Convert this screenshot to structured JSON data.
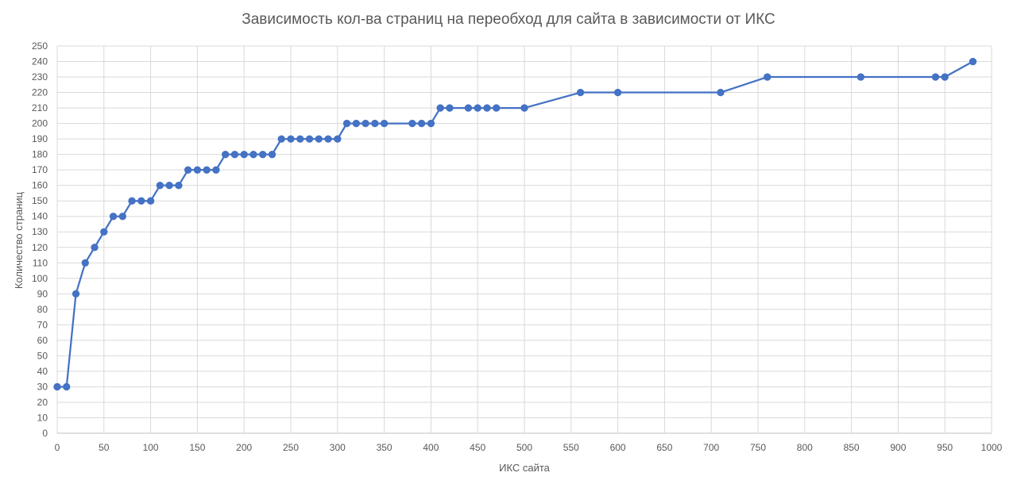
{
  "chart_data": {
    "type": "line",
    "title": "Зависимость кол-ва страниц на переобход для сайта в зависимости от ИКС",
    "xlabel": "ИКС сайта",
    "ylabel": "Количество страниц",
    "xlim": [
      0,
      1000
    ],
    "ylim": [
      0,
      250
    ],
    "x_ticks": [
      "0",
      "50",
      "100",
      "150",
      "200",
      "250",
      "300",
      "350",
      "400",
      "450",
      "500",
      "550",
      "600",
      "650",
      "700",
      "750",
      "800",
      "850",
      "900",
      "950",
      "1000"
    ],
    "y_ticks": [
      "0",
      "10",
      "20",
      "30",
      "40",
      "50",
      "60",
      "70",
      "80",
      "90",
      "100",
      "110",
      "120",
      "130",
      "140",
      "150",
      "160",
      "170",
      "180",
      "190",
      "200",
      "210",
      "220",
      "230",
      "240",
      "250"
    ],
    "grid": true,
    "legend": "none",
    "series": [
      {
        "color": "#4472C4",
        "points": [
          [
            0,
            30
          ],
          [
            10,
            30
          ],
          [
            20,
            90
          ],
          [
            30,
            110
          ],
          [
            40,
            120
          ],
          [
            50,
            130
          ],
          [
            60,
            140
          ],
          [
            70,
            140
          ],
          [
            80,
            150
          ],
          [
            90,
            150
          ],
          [
            100,
            150
          ],
          [
            110,
            160
          ],
          [
            120,
            160
          ],
          [
            130,
            160
          ],
          [
            140,
            170
          ],
          [
            150,
            170
          ],
          [
            160,
            170
          ],
          [
            170,
            170
          ],
          [
            180,
            180
          ],
          [
            190,
            180
          ],
          [
            200,
            180
          ],
          [
            210,
            180
          ],
          [
            220,
            180
          ],
          [
            230,
            180
          ],
          [
            240,
            190
          ],
          [
            250,
            190
          ],
          [
            260,
            190
          ],
          [
            270,
            190
          ],
          [
            280,
            190
          ],
          [
            290,
            190
          ],
          [
            300,
            190
          ],
          [
            310,
            200
          ],
          [
            320,
            200
          ],
          [
            330,
            200
          ],
          [
            340,
            200
          ],
          [
            350,
            200
          ],
          [
            380,
            200
          ],
          [
            390,
            200
          ],
          [
            400,
            200
          ],
          [
            410,
            210
          ],
          [
            420,
            210
          ],
          [
            440,
            210
          ],
          [
            450,
            210
          ],
          [
            460,
            210
          ],
          [
            470,
            210
          ],
          [
            500,
            210
          ],
          [
            560,
            220
          ],
          [
            600,
            220
          ],
          [
            710,
            220
          ],
          [
            760,
            230
          ],
          [
            860,
            230
          ],
          [
            940,
            230
          ],
          [
            950,
            230
          ],
          [
            980,
            240
          ]
        ]
      }
    ]
  }
}
